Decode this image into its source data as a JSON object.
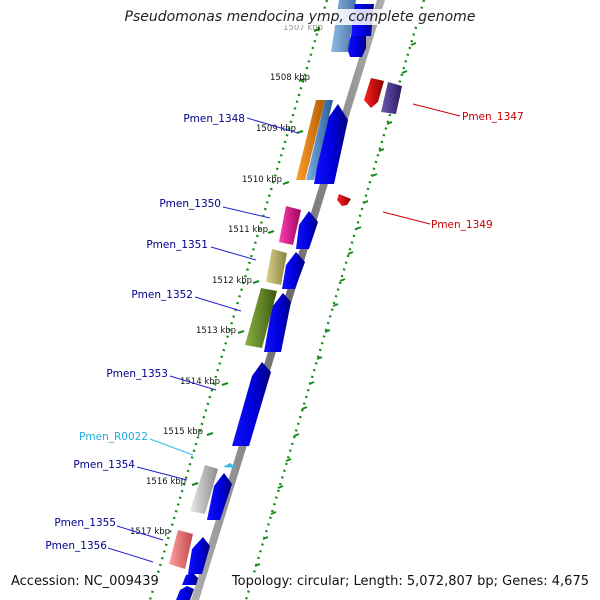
{
  "title": "Pseudomonas mendocina ymp, complete genome",
  "footer": {
    "accession": "Accession: NC_009439",
    "summary": "Topology: circular; Length: 5,072,807 bp; Genes: 4,675"
  },
  "kbp_labels": [
    "1507 kbp",
    "1508 kbp",
    "1509 kbp",
    "1510 kbp",
    "1511 kbp",
    "1512 kbp",
    "1513 kbp",
    "1514 kbp",
    "1515 kbp",
    "1516 kbp",
    "1517 kbp"
  ],
  "gene_labels": [
    {
      "name": "Pmen_1348",
      "color": "#00008b"
    },
    {
      "name": "Pmen_1347",
      "color": "#cc0000"
    },
    {
      "name": "Pmen_1350",
      "color": "#00008b"
    },
    {
      "name": "Pmen_1349",
      "color": "#cc0000"
    },
    {
      "name": "Pmen_1351",
      "color": "#00008b"
    },
    {
      "name": "Pmen_1352",
      "color": "#00008b"
    },
    {
      "name": "Pmen_1353",
      "color": "#00008b"
    },
    {
      "name": "Pmen_R0022",
      "color": "#22aadd"
    },
    {
      "name": "Pmen_1354",
      "color": "#00008b"
    },
    {
      "name": "Pmen_1355",
      "color": "#00008b"
    },
    {
      "name": "Pmen_1356",
      "color": "#00008b"
    }
  ],
  "colors": {
    "backbone": "#7a7a7a",
    "dotted_ring": "#1a8a1a",
    "tick": "#1a8a1a",
    "cds_forward": "#0000ee",
    "cds_reverse": "#dd0000",
    "rna": "#33bbee",
    "cog_blue": "#4a88c8",
    "cog_orange": "#f08a10",
    "cog_purple": "#4a3a8a",
    "cog_pink": "#e8209a",
    "cog_khaki": "#bdb76b",
    "cog_olive": "#6b8e23",
    "cog_grey": "#c8c8c8",
    "cog_salmon": "#f08080"
  }
}
